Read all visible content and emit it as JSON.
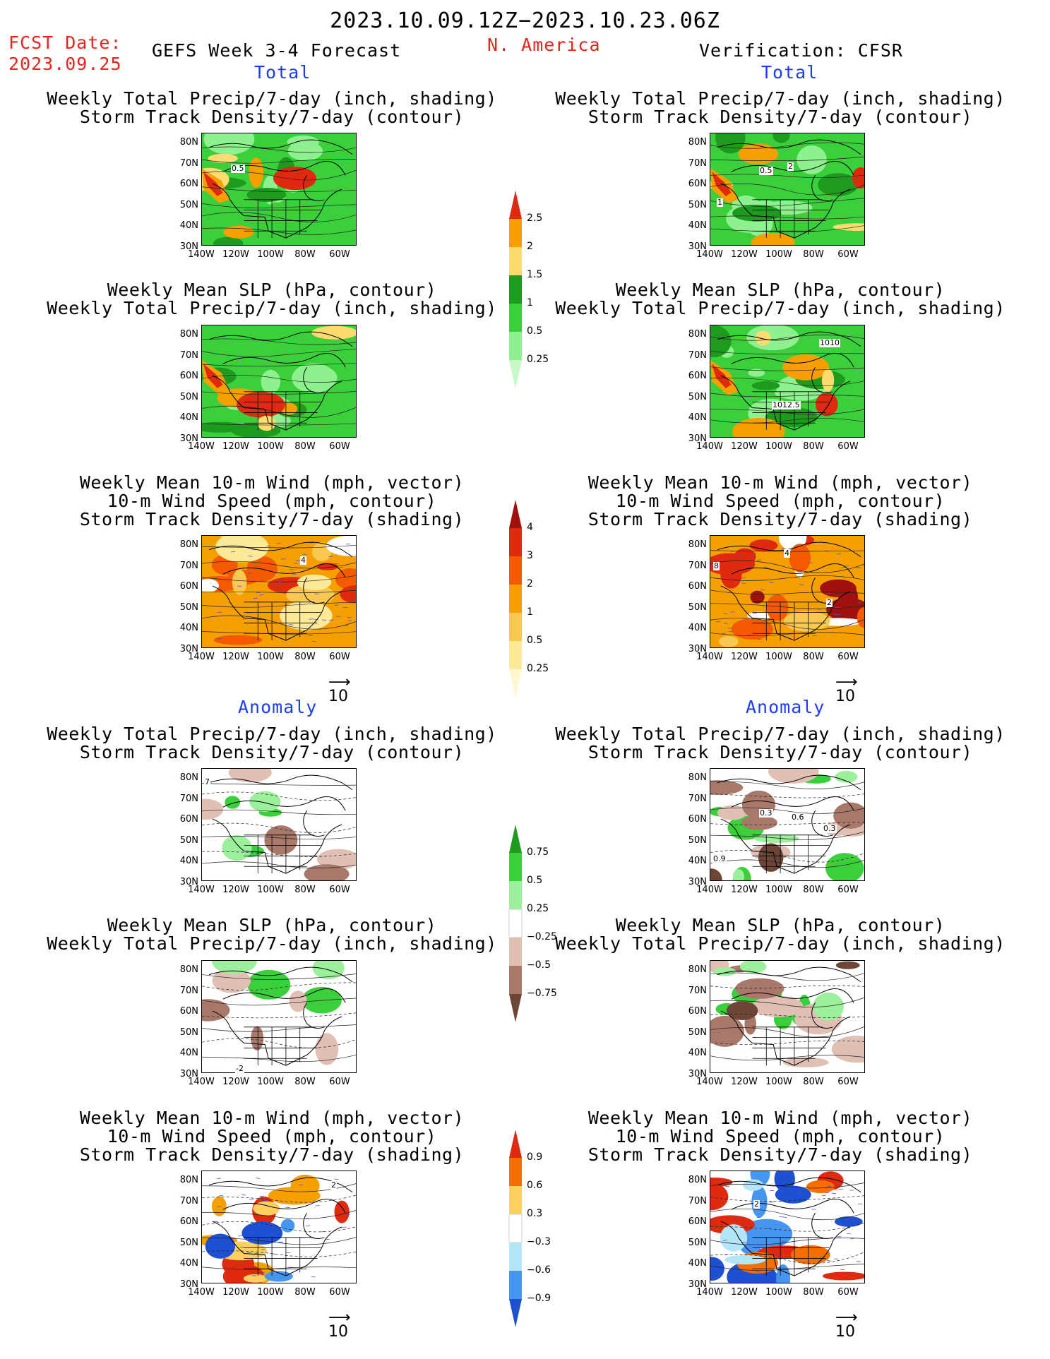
{
  "header": {
    "date_range": "2023.10.09.12Z−2023.10.23.06Z",
    "fcst_date_label": "FCST Date:",
    "fcst_date": "2023.09.25",
    "forecast_title": "GEFS Week 3-4 Forecast",
    "region": "N. America",
    "verification": "Verification: CFSR"
  },
  "sections": {
    "total": "Total",
    "anomaly": "Anomaly"
  },
  "panel_titles": {
    "precip_track": [
      "Weekly Total Precip/7-day (inch, shading)",
      "Storm Track Density/7-day (contour)"
    ],
    "slp_precip": [
      "Weekly Mean SLP (hPa, contour)",
      "Weekly Total Precip/7-day (inch, shading)"
    ],
    "wind_track": [
      "Weekly Mean 10-m Wind (mph, vector)",
      "10-m Wind Speed (mph, contour)",
      "Storm Track Density/7-day (shading)"
    ]
  },
  "axes": {
    "lat_ticks": [
      "80N",
      "70N",
      "60N",
      "50N",
      "40N",
      "30N"
    ],
    "lon_ticks": [
      "140W",
      "120W",
      "100W",
      "80W",
      "60W"
    ]
  },
  "vector_ref": "10",
  "contour_labels": {
    "t1_left": "0.5",
    "t1_right_a": "0.5",
    "t1_right_b": "2",
    "t1_right_c": "1",
    "t2_right_a": "1010",
    "t2_right_b": "1012.5",
    "t3_left": "4",
    "t3_right_a": "4",
    "t3_right_b": "8",
    "t3_right_c": "2",
    "a1_left": "7",
    "a1_right_a": "0.3",
    "a1_right_b": "0.6",
    "a1_right_c": "0.3",
    "a1_right_d": "0.9",
    "a2_left": "-2",
    "a3_left": "2",
    "a3_right_a": "2"
  },
  "colorbars": {
    "precip_total": {
      "labels": [
        "2.5",
        "2",
        "1.5",
        "1",
        "0.5",
        "0.25"
      ],
      "colors": [
        "#e02a10",
        "#f5a000",
        "#fcdc70",
        "#1e9b1e",
        "#3ccf3c",
        "#8ef08e",
        "#c8f8c8"
      ]
    },
    "track_total": {
      "labels": [
        "4",
        "3",
        "2",
        "1",
        "0.5",
        "0.25"
      ],
      "colors": [
        "#a0100c",
        "#e02a10",
        "#f55a00",
        "#f5a000",
        "#f9c850",
        "#fde99a",
        "#fff7d0"
      ]
    },
    "precip_anom": {
      "labels": [
        "0.75",
        "0.5",
        "0.25",
        "−0.25",
        "−0.5",
        "−0.75"
      ],
      "colors": [
        "#1e9b1e",
        "#3ccf3c",
        "#9cf09c",
        "#ffffff",
        "#e0c0b4",
        "#a8786a",
        "#6e4638"
      ]
    },
    "track_anom": {
      "labels": [
        "0.9",
        "0.6",
        "0.3",
        "−0.3",
        "−0.6",
        "−0.9"
      ],
      "colors": [
        "#e02a10",
        "#f56e00",
        "#fcd060",
        "#ffffff",
        "#b4e6fa",
        "#4696f0",
        "#1e50d2"
      ]
    }
  },
  "colors": {
    "title_red": "#e8231e",
    "section_blue": "#1e3cff"
  }
}
